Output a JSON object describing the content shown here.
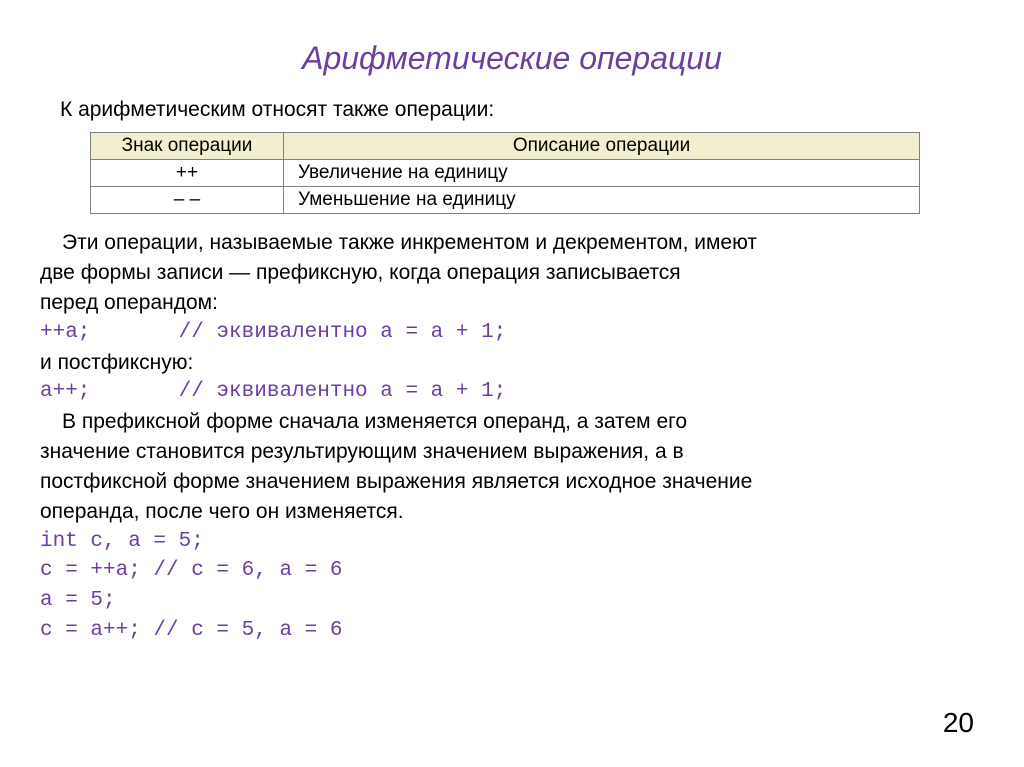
{
  "title": "Арифметические операции",
  "intro": "К арифметическим относят также операции:",
  "table": {
    "headers": {
      "sign": "Знак операции",
      "desc": "Описание операции"
    },
    "rows": [
      {
        "sign": "++",
        "desc": "Увеличение на единицу"
      },
      {
        "sign": "– –",
        "desc": "Уменьшение на единицу"
      }
    ]
  },
  "para1_a": "Эти операции, называемые также  инкрементом  и  декрементом,  имеют",
  "para1_b": "две  формы  записи  —  префиксную, когда операция  записывается",
  "para1_c": "перед операндом:",
  "code1": "++a;       // эквивалентно a = a + 1;",
  "para2": "и постфиксную:",
  "code2": "a++;       // эквивалентно a = a + 1;",
  "para3_a": "В префиксной форме сначала  изменяется  операнд,  а затем его",
  "para3_b": "значение  становится  результирующим  значением  выражения, а в",
  "para3_c": "постфиксной  форме значением  выражения является  исходное значение",
  "para3_d": "операнда, после чего он  изменяется.",
  "code3_a": "int c, a = 5;",
  "code3_b": "c = ++a; // c = 6, a = 6",
  "code3_c": "a = 5;",
  "code3_d": "c = a++; // c = 5, a = 6",
  "page_num": "20",
  "style": {
    "title_color": "#6a3fa0",
    "code_color": "#6a3fa0",
    "table_header_bg": "#f2efd0",
    "body_fontsize": 21,
    "title_fontsize": 32,
    "bg": "#ffffff"
  }
}
